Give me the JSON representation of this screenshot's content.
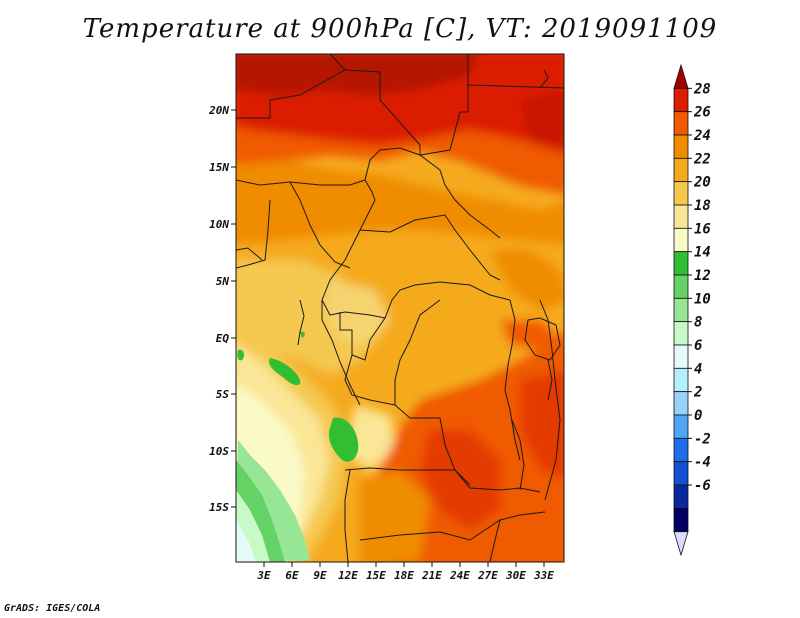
{
  "title": "Temperature at 900hPa [C], VT: 2019091109",
  "credit": "GrADS: IGES/COLA",
  "map": {
    "variable": "Temperature",
    "level": "900hPa",
    "units": "C",
    "valid_time": "2019091109",
    "lat_ticks": [
      "20N",
      "15N",
      "10N",
      "5N",
      "EQ",
      "5S",
      "10S",
      "15S"
    ],
    "lon_ticks": [
      "3E",
      "6E",
      "9E",
      "12E",
      "15E",
      "18E",
      "21E",
      "24E",
      "27E",
      "30E",
      "33E"
    ]
  },
  "colorbar": {
    "levels": [
      "28",
      "26",
      "24",
      "22",
      "20",
      "18",
      "16",
      "14",
      "12",
      "10",
      "8",
      "6",
      "4",
      "2",
      "0",
      "-2",
      "-4",
      "-6"
    ],
    "colors": [
      "#a50000",
      "#dc1e00",
      "#f05a00",
      "#f08c00",
      "#f5aa1e",
      "#f5c850",
      "#fae696",
      "#fafac8",
      "#32be32",
      "#64d264",
      "#96e696",
      "#c8fac8",
      "#e6fafa",
      "#b4f0fa",
      "#96d2fa",
      "#50a5f5",
      "#1e6eeb",
      "#1450d2",
      "#0a28a0",
      "#000064",
      "#dcdcff"
    ]
  }
}
